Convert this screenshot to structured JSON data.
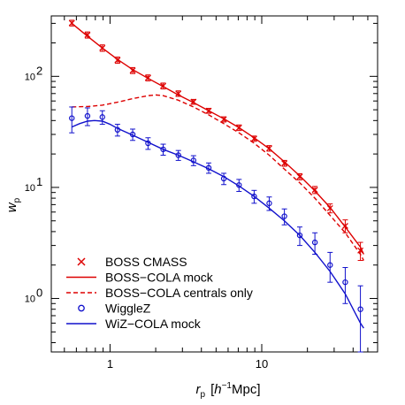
{
  "chart_data": {
    "type": "scatter",
    "xscale": "log",
    "yscale": "log",
    "xlim": [
      0.41,
      58
    ],
    "ylim": [
      0.33,
      350
    ],
    "xlabel": "r_p [h^-1 Mpc]",
    "xlabel_parts": {
      "r": "r",
      "p": "p",
      "bracket_open": "[",
      "h": "h",
      "exp": "−1",
      "unit": "Mpc]"
    },
    "ylabel": "w_p",
    "ylabel_parts": {
      "w": "w",
      "p": "p"
    },
    "x_ticks": [
      {
        "value": 1,
        "label": "1"
      },
      {
        "value": 10,
        "label": "10"
      }
    ],
    "y_ticks": [
      {
        "value": 1,
        "base": "10",
        "exp": "0"
      },
      {
        "value": 10,
        "base": "10",
        "exp": "1"
      },
      {
        "value": 100,
        "base": "10",
        "exp": "2"
      }
    ],
    "grid": false,
    "legend_position": "bottom-left",
    "series": [
      {
        "name": "BOSS CMASS",
        "kind": "points",
        "marker": "x",
        "color": "#dd0000",
        "x": [
          0.56,
          0.71,
          0.89,
          1.12,
          1.41,
          1.78,
          2.24,
          2.82,
          3.55,
          4.47,
          5.62,
          7.08,
          8.91,
          11.2,
          14.1,
          17.8,
          22.4,
          28.2,
          35.5,
          44.7
        ],
        "y": [
          302,
          236,
          180,
          140,
          113,
          97,
          82,
          70,
          59,
          49,
          41,
          34.5,
          27.5,
          22.5,
          16.5,
          12.5,
          9.5,
          6.5,
          4.5,
          2.7
        ],
        "yerr": [
          18,
          15,
          12,
          9,
          7,
          6,
          5,
          4,
          3,
          2.5,
          2.2,
          2.0,
          1.5,
          1.3,
          1.0,
          0.8,
          0.7,
          0.6,
          0.6,
          0.5
        ]
      },
      {
        "name": "BOSS−COLA mock",
        "kind": "line",
        "dash": "solid",
        "color": "#dd0000",
        "x": [
          0.56,
          0.71,
          0.89,
          1.12,
          1.41,
          1.78,
          2.24,
          2.82,
          3.55,
          4.47,
          5.62,
          7.08,
          8.91,
          11.2,
          14.1,
          17.8,
          22.4,
          28.2,
          35.5,
          44.7,
          47
        ],
        "y": [
          300,
          230,
          180,
          142,
          115,
          96,
          81,
          68,
          58,
          49,
          41.5,
          34.5,
          28,
          22.3,
          17,
          12.7,
          9.3,
          6.6,
          4.4,
          2.9,
          2.5
        ]
      },
      {
        "name": "BOSS−COLA centrals only",
        "kind": "line",
        "dash": "dashed",
        "color": "#dd0000",
        "x": [
          0.56,
          0.71,
          0.89,
          1.12,
          1.41,
          1.78,
          2.0,
          2.24,
          2.82,
          3.55,
          4.47,
          5.62,
          7.08,
          8.91,
          11.2,
          14.1,
          17.8,
          22.4,
          28.2,
          35.5,
          44.7,
          47
        ],
        "y": [
          53,
          53.5,
          55,
          58.5,
          63,
          67,
          68,
          67,
          61,
          53,
          45,
          37.5,
          31,
          25,
          19.5,
          14.6,
          11,
          8,
          5.6,
          3.9,
          2.5,
          2.2
        ]
      },
      {
        "name": "WiggleZ",
        "kind": "points",
        "marker": "circle",
        "color": "#1111cc",
        "x": [
          0.56,
          0.71,
          0.89,
          1.12,
          1.41,
          1.78,
          2.24,
          2.82,
          3.55,
          4.47,
          5.62,
          7.08,
          8.91,
          11.2,
          14.1,
          17.8,
          22.4,
          28.2,
          35.5,
          44.7
        ],
        "y": [
          42,
          44,
          43,
          33,
          30,
          25,
          22,
          19.5,
          17.5,
          15,
          12,
          10.5,
          8.3,
          7.2,
          5.5,
          3.7,
          3.2,
          2.0,
          1.4,
          0.8
        ],
        "yerr": [
          11,
          8,
          6,
          4,
          3.5,
          3,
          2.5,
          2,
          1.8,
          1.6,
          1.4,
          1.3,
          1.1,
          1.0,
          0.9,
          0.7,
          0.7,
          0.6,
          0.5,
          0.5
        ]
      },
      {
        "name": "WiZ−COLA mock",
        "kind": "line",
        "dash": "solid",
        "color": "#1111cc",
        "x": [
          0.56,
          0.63,
          0.71,
          0.79,
          0.89,
          1.0,
          1.12,
          1.41,
          1.78,
          2.24,
          2.82,
          3.55,
          4.47,
          5.62,
          7.08,
          8.91,
          11.2,
          14.1,
          17.8,
          22.4,
          28.2,
          35.5,
          44.7,
          47
        ],
        "y": [
          35,
          37.5,
          39.5,
          40,
          39.5,
          37,
          34,
          29.5,
          25.5,
          22,
          19.5,
          17,
          14.7,
          12.5,
          10.3,
          8.3,
          6.5,
          5.0,
          3.7,
          2.6,
          1.75,
          1.1,
          0.6,
          0.54
        ]
      }
    ]
  }
}
